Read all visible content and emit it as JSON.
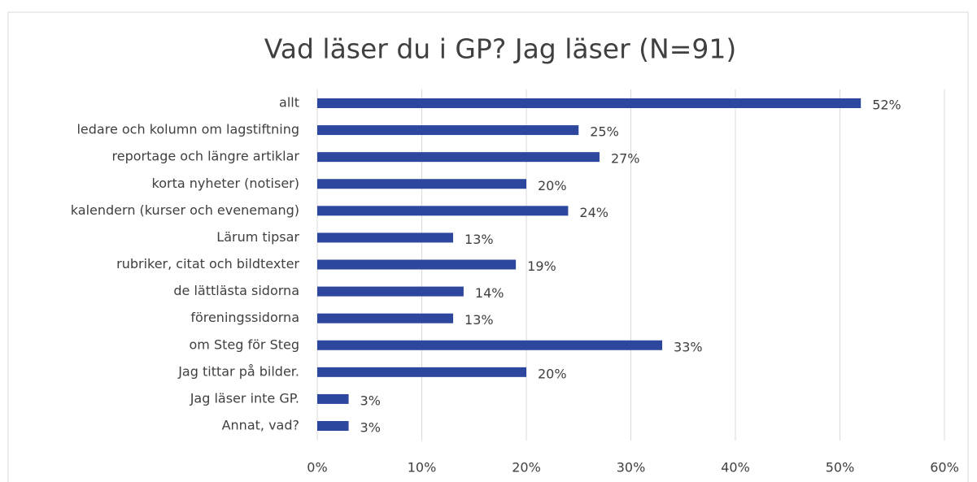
{
  "chart_data": {
    "type": "bar",
    "orientation": "horizontal",
    "title": "Vad läser du i GP? Jag läser (N=91)",
    "categories": [
      "allt",
      "ledare och kolumn om lagstiftning",
      "reportage och längre artiklar",
      "korta nyheter (notiser)",
      "kalendern (kurser och evenemang)",
      "Lärum tipsar",
      "rubriker, citat och bildtexter",
      "de lättlästa sidorna",
      "föreningssidorna",
      "om Steg för Steg",
      "Jag tittar på bilder.",
      "Jag läser inte GP.",
      "Annat, vad?"
    ],
    "values": [
      52,
      25,
      27,
      20,
      24,
      13,
      19,
      14,
      13,
      33,
      20,
      3,
      3
    ],
    "value_labels": [
      "52%",
      "25%",
      "27%",
      "20%",
      "24%",
      "13%",
      "19%",
      "14%",
      "13%",
      "33%",
      "20%",
      "3%",
      "3%"
    ],
    "color": "#2e479e",
    "xlim": [
      0,
      60
    ],
    "xticks": [
      {
        "value": 0,
        "label": "0%"
      },
      {
        "value": 10,
        "label": "10%"
      },
      {
        "value": 20,
        "label": "20%"
      },
      {
        "value": 30,
        "label": "30%"
      },
      {
        "value": 40,
        "label": "40%"
      },
      {
        "value": 50,
        "label": "50%"
      },
      {
        "value": 60,
        "label": "60%"
      }
    ],
    "grid": true
  }
}
